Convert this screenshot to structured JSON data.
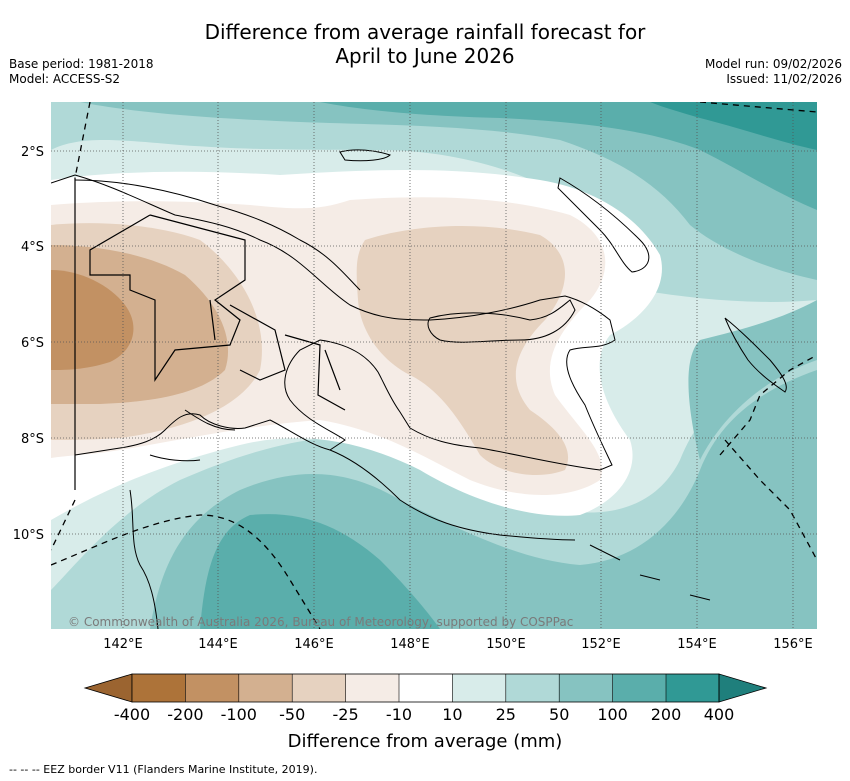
{
  "title": {
    "line1": "Difference from average rainfall forecast for",
    "line2": "April to June 2026"
  },
  "meta": {
    "base_period": "Base period: 1981-2018",
    "model": "Model: ACCESS-S2",
    "model_run": "Model run: 09/02/2026",
    "issued": "Issued: 11/02/2026"
  },
  "map": {
    "lat_labels": [
      "2°S",
      "4°S",
      "6°S",
      "8°S",
      "10°S"
    ],
    "lon_labels": [
      "142°E",
      "144°E",
      "146°E",
      "148°E",
      "150°E",
      "152°E",
      "154°E",
      "156°E"
    ],
    "copyright": "© Commonwealth of Australia 2026, Bureau of Meteorology, supported by COSPPac"
  },
  "legend": {
    "title": "Difference from average (mm)",
    "ticks": [
      "-400",
      "-200",
      "-100",
      "-50",
      "-25",
      "-10",
      "10",
      "25",
      "50",
      "100",
      "200",
      "400"
    ],
    "colors": {
      "below_400": "#9b6430",
      "m400_m200": "#ad7339",
      "m200_m100": "#c29163",
      "m100_m50": "#d3b090",
      "m50_m25": "#e6d2c0",
      "m25_m10": "#f5ece6",
      "m10_p10": "#ffffff",
      "p10_p25": "#d8ecea",
      "p25_p50": "#b0d9d7",
      "p50_p100": "#86c3c1",
      "p100_p200": "#5aaeab",
      "p200_p400": "#309995",
      "above_400": "#1f7f7c"
    }
  },
  "footer": {
    "eez_note": "-- -- -- EEZ border V11 (Flanders Marine Institute, 2019)."
  }
}
